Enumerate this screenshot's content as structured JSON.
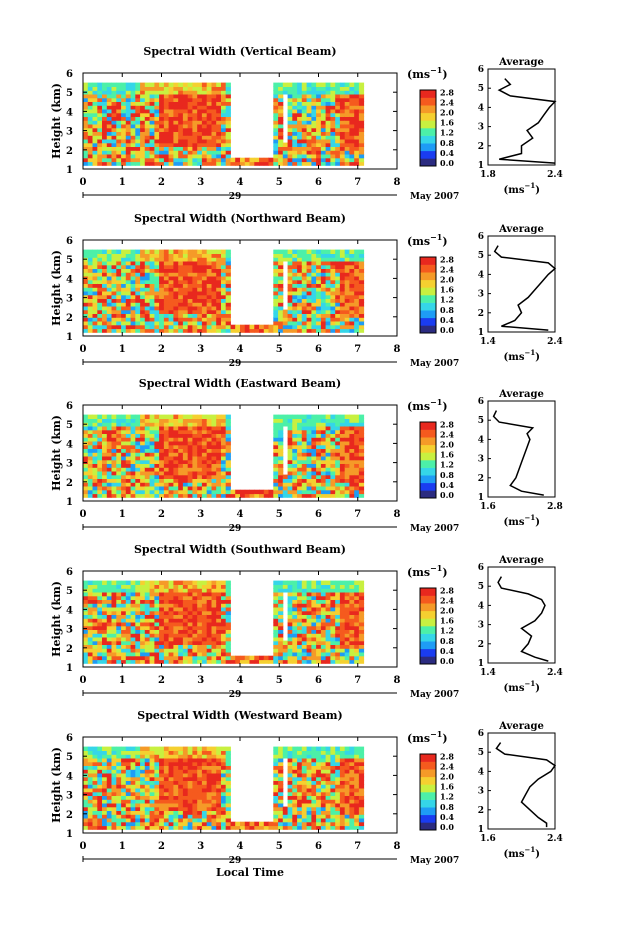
{
  "figure": {
    "xlabel": "Local Time",
    "date_day": "29",
    "date_month": "May 2007",
    "unit": "(ms",
    "unit_exp": "−1",
    "unit_close": ")",
    "colorbar_ticks": [
      "0.0",
      "0.4",
      "0.8",
      "1.2",
      "1.6",
      "2.0",
      "2.4",
      "2.8"
    ],
    "colors": {
      "scale": [
        "#2b2b80",
        "#1a3cf0",
        "#1e9cf5",
        "#35d6e8",
        "#4cf0a8",
        "#c8f040",
        "#f5d030",
        "#f59a28",
        "#f55a1e",
        "#e8281e"
      ],
      "background": "#ffffff",
      "axis": "#000000"
    }
  },
  "chart_data": [
    {
      "type": "heatmap",
      "title": "Spectral Width (Vertical Beam)",
      "ylabel": "Height (km)",
      "xlim": [
        0,
        8
      ],
      "ylim": [
        1,
        6
      ],
      "x_ticks": [
        "0",
        "1",
        "2",
        "3",
        "4",
        "5",
        "6",
        "7",
        "8"
      ],
      "y_ticks": [
        "1",
        "2",
        "3",
        "4",
        "5",
        "6"
      ],
      "gap_hours": [
        [
          3.7,
          4.9
        ]
      ],
      "colorbar_range": [
        0.0,
        2.8
      ],
      "profile": {
        "title": "Average",
        "xlim": [
          1.8,
          2.4
        ],
        "x_ticks": [
          "1.8",
          "2.4"
        ],
        "ylim": [
          1,
          6
        ],
        "heights": [
          1.1,
          1.3,
          1.6,
          2.0,
          2.4,
          2.8,
          3.2,
          3.6,
          4.0,
          4.3,
          4.6,
          4.9,
          5.2,
          5.5
        ],
        "values": [
          2.4,
          1.9,
          2.1,
          2.1,
          2.2,
          2.15,
          2.25,
          2.3,
          2.35,
          2.4,
          2.0,
          1.9,
          2.0,
          1.95
        ]
      }
    },
    {
      "type": "heatmap",
      "title": "Spectral Width (Northward Beam)",
      "ylabel": "Height (km)",
      "xlim": [
        0,
        8
      ],
      "ylim": [
        1,
        6
      ],
      "x_ticks": [
        "0",
        "1",
        "2",
        "3",
        "4",
        "5",
        "6",
        "7",
        "8"
      ],
      "y_ticks": [
        "1",
        "2",
        "3",
        "4",
        "5",
        "6"
      ],
      "gap_hours": [
        [
          3.8,
          4.9
        ]
      ],
      "colorbar_range": [
        0.0,
        2.8
      ],
      "profile": {
        "title": "Average",
        "xlim": [
          1.4,
          2.4
        ],
        "x_ticks": [
          "1.4",
          "2.4"
        ],
        "ylim": [
          1,
          6
        ],
        "heights": [
          1.1,
          1.3,
          1.6,
          2.0,
          2.4,
          2.8,
          3.2,
          3.6,
          4.0,
          4.3,
          4.6,
          4.9,
          5.2,
          5.5
        ],
        "values": [
          2.3,
          1.6,
          1.8,
          1.9,
          1.85,
          2.0,
          2.1,
          2.2,
          2.3,
          2.4,
          2.3,
          1.6,
          1.5,
          1.55
        ]
      }
    },
    {
      "type": "heatmap",
      "title": "Spectral Width (Eastward Beam)",
      "ylabel": "Height (km)",
      "xlim": [
        0,
        8
      ],
      "ylim": [
        1,
        6
      ],
      "x_ticks": [
        "0",
        "1",
        "2",
        "3",
        "4",
        "5",
        "6",
        "7",
        "8"
      ],
      "y_ticks": [
        "1",
        "2",
        "3",
        "4",
        "5",
        "6"
      ],
      "gap_hours": [
        [
          3.8,
          4.9
        ]
      ],
      "colorbar_range": [
        0.0,
        2.8
      ],
      "profile": {
        "title": "Average",
        "xlim": [
          1.6,
          2.8
        ],
        "x_ticks": [
          "1.6",
          "2.8"
        ],
        "ylim": [
          1,
          6
        ],
        "heights": [
          1.1,
          1.3,
          1.6,
          2.0,
          2.4,
          2.8,
          3.2,
          3.6,
          4.0,
          4.3,
          4.6,
          4.9,
          5.2,
          5.5
        ],
        "values": [
          2.6,
          2.2,
          2.0,
          2.1,
          2.15,
          2.2,
          2.25,
          2.3,
          2.35,
          2.3,
          2.4,
          1.8,
          1.7,
          1.75
        ]
      }
    },
    {
      "type": "heatmap",
      "title": "Spectral Width (Southward Beam)",
      "ylabel": "Height (km)",
      "xlim": [
        0,
        8
      ],
      "ylim": [
        1,
        6
      ],
      "x_ticks": [
        "0",
        "1",
        "2",
        "3",
        "4",
        "5",
        "6",
        "7",
        "8"
      ],
      "y_ticks": [
        "1",
        "2",
        "3",
        "4",
        "5",
        "6"
      ],
      "gap_hours": [
        [
          3.8,
          4.9
        ]
      ],
      "colorbar_range": [
        0.0,
        2.8
      ],
      "profile": {
        "title": "Average",
        "xlim": [
          1.4,
          2.4
        ],
        "x_ticks": [
          "1.4",
          "2.4"
        ],
        "ylim": [
          1,
          6
        ],
        "heights": [
          1.1,
          1.3,
          1.6,
          2.0,
          2.4,
          2.8,
          3.2,
          3.6,
          4.0,
          4.3,
          4.6,
          4.9,
          5.2,
          5.5
        ],
        "values": [
          2.3,
          2.1,
          1.9,
          2.0,
          2.05,
          1.9,
          2.1,
          2.2,
          2.25,
          2.2,
          2.0,
          1.6,
          1.55,
          1.6
        ]
      }
    },
    {
      "type": "heatmap",
      "title": "Spectral Width (Westward Beam)",
      "ylabel": "Height (km)",
      "xlim": [
        0,
        8
      ],
      "ylim": [
        1,
        6
      ],
      "x_ticks": [
        "0",
        "1",
        "2",
        "3",
        "4",
        "5",
        "6",
        "7",
        "8"
      ],
      "y_ticks": [
        "1",
        "2",
        "3",
        "4",
        "5",
        "6"
      ],
      "gap_hours": [
        [
          3.8,
          4.9
        ]
      ],
      "colorbar_range": [
        0.0,
        2.8
      ],
      "profile": {
        "title": "Average",
        "xlim": [
          1.6,
          2.4
        ],
        "x_ticks": [
          "1.6",
          "2.4"
        ],
        "ylim": [
          1,
          6
        ],
        "heights": [
          1.1,
          1.3,
          1.6,
          2.0,
          2.4,
          2.8,
          3.2,
          3.6,
          4.0,
          4.3,
          4.6,
          4.9,
          5.2,
          5.5
        ],
        "values": [
          2.3,
          2.3,
          2.2,
          2.1,
          2.0,
          2.05,
          2.1,
          2.2,
          2.35,
          2.4,
          2.3,
          1.8,
          1.7,
          1.75
        ]
      }
    }
  ]
}
